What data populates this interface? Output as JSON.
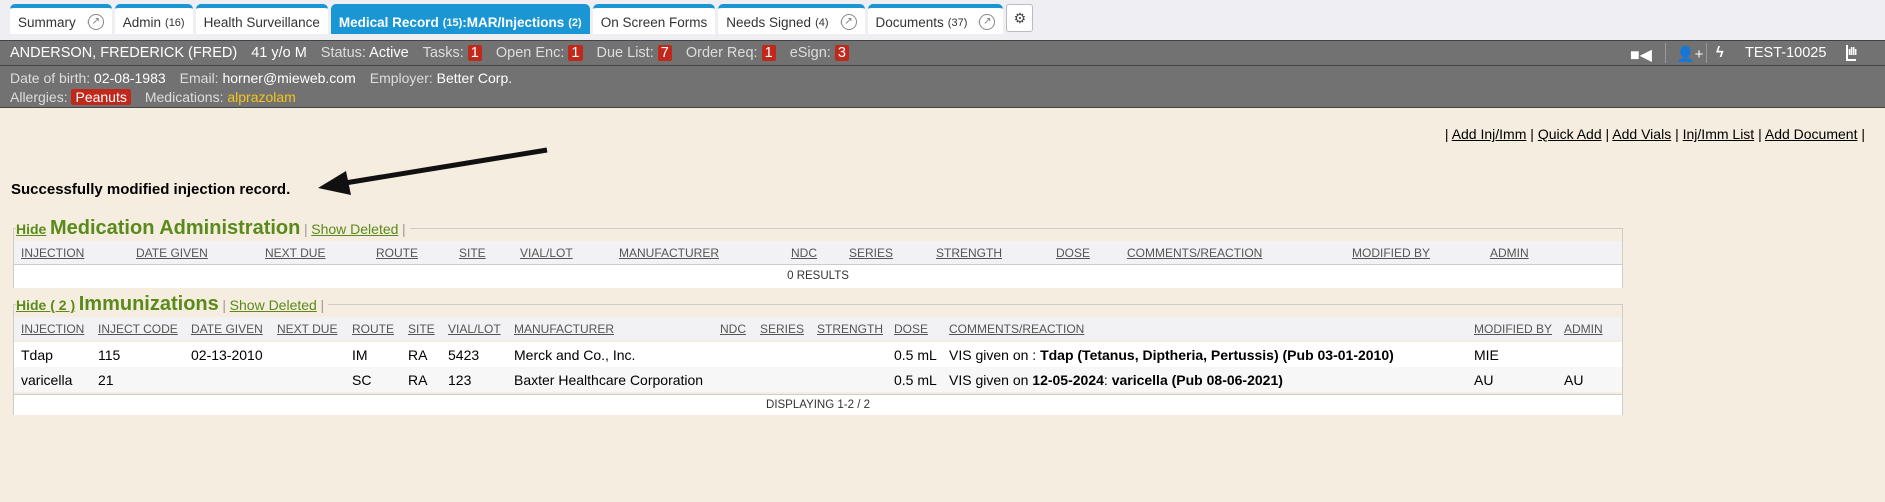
{
  "tabs": [
    {
      "label": "Summary"
    },
    {
      "label": "Admin",
      "count": "(16)"
    },
    {
      "label": "Health Surveillance"
    },
    {
      "label": "Medical Record",
      "count": "(15)",
      "suffix": ":MAR/Injections",
      "count2": "(2)"
    },
    {
      "label": "On Screen Forms"
    },
    {
      "label": "Needs Signed",
      "count": "(4)"
    },
    {
      "label": "Documents",
      "count": "(37)"
    }
  ],
  "header": {
    "name": "ANDERSON, FREDERICK (FRED)",
    "age": "41 y/o M",
    "status_label": "Status:",
    "status": "Active",
    "tasks_label": "Tasks:",
    "tasks": "1",
    "open_enc_label": "Open Enc:",
    "open_enc": "1",
    "due_list_label": "Due List:",
    "due_list": "7",
    "order_req_label": "Order Req:",
    "order_req": "1",
    "esign_label": "eSign:",
    "esign": "3",
    "patient_id": "TEST-10025"
  },
  "info": {
    "dob_label": "Date of birth:",
    "dob": "02-08-1983",
    "email_label": "Email:",
    "email": "horner@mieweb.com",
    "employer_label": "Employer:",
    "employer": "Better Corp.",
    "allergies_label": "Allergies:",
    "allergy": "Peanuts",
    "medications_label": "Medications:",
    "medication": "alprazolam"
  },
  "links": [
    "Add Inj/Imm",
    "Quick Add",
    "Add Vials",
    "Inj/Imm List",
    "Add Document"
  ],
  "message": "Successfully modified injection record.",
  "med_admin": {
    "hide": "Hide",
    "title": "Medication Administration",
    "show_deleted": "Show Deleted",
    "columns": [
      "INJECTION",
      "DATE GIVEN",
      "NEXT DUE",
      "ROUTE",
      "SITE",
      "VIAL/LOT",
      "MANUFACTURER",
      "NDC",
      "SERIES",
      "STRENGTH",
      "DOSE",
      "COMMENTS/REACTION",
      "MODIFIED BY",
      "ADMIN"
    ],
    "results": "0 RESULTS"
  },
  "immunizations": {
    "hide": "Hide ( 2 )",
    "title": "Immunizations",
    "show_deleted": "Show Deleted",
    "columns": [
      "INJECTION",
      "INJECT CODE",
      "DATE GIVEN",
      "NEXT DUE",
      "ROUTE",
      "SITE",
      "VIAL/LOT",
      "MANUFACTURER",
      "NDC",
      "SERIES",
      "STRENGTH",
      "DOSE",
      "COMMENTS/REACTION",
      "MODIFIED BY",
      "ADMIN"
    ],
    "rows": [
      {
        "injection": "Tdap",
        "code": "115",
        "date_given": "02-13-2010",
        "next_due": "",
        "route": "IM",
        "site": "RA",
        "vial": "5423",
        "manufacturer": "Merck and Co., Inc.",
        "dose": "0.5 mL",
        "comment_pre": "VIS given on : ",
        "comment_bold": "Tdap (Tetanus, Diptheria, Pertussis) (Pub 03-01-2010)",
        "modified_by": "MIE",
        "admin": ""
      },
      {
        "injection": "varicella",
        "code": "21",
        "date_given": "",
        "next_due": "",
        "route": "SC",
        "site": "RA",
        "vial": "123",
        "manufacturer": "Baxter Healthcare Corporation",
        "dose": "0.5 mL",
        "comment_pre": "VIS given on ",
        "comment_date": "12-05-2024",
        "comment_mid": ": ",
        "comment_bold": "varicella (Pub 08-06-2021)",
        "modified_by": "AU",
        "admin": "AU"
      }
    ],
    "footer": "DISPLAYING 1-2 / 2"
  }
}
